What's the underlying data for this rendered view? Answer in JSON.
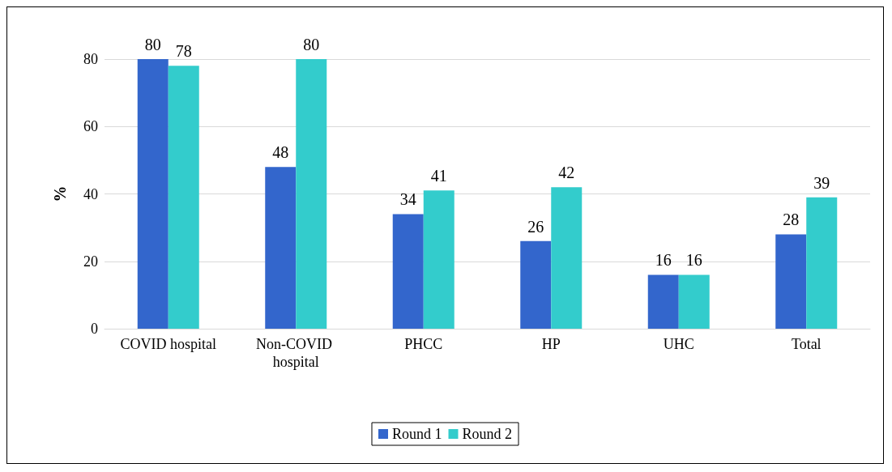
{
  "chart_data": {
    "type": "bar",
    "ylabel": "%",
    "categories": [
      "COVID hospital",
      "Non-COVID hospital",
      "PHCC",
      "HP",
      "UHC",
      "Total"
    ],
    "series": [
      {
        "name": "Round 1",
        "color": "#3366cc",
        "values": [
          80,
          48,
          34,
          26,
          16,
          28
        ]
      },
      {
        "name": "Round 2",
        "color": "#33cccc",
        "values": [
          78,
          80,
          41,
          42,
          16,
          39
        ]
      }
    ],
    "ylim": [
      0,
      80
    ],
    "yticks": [
      0,
      20,
      40,
      60,
      80
    ],
    "grid": "y",
    "legend": "bottom",
    "data_labels": true
  }
}
